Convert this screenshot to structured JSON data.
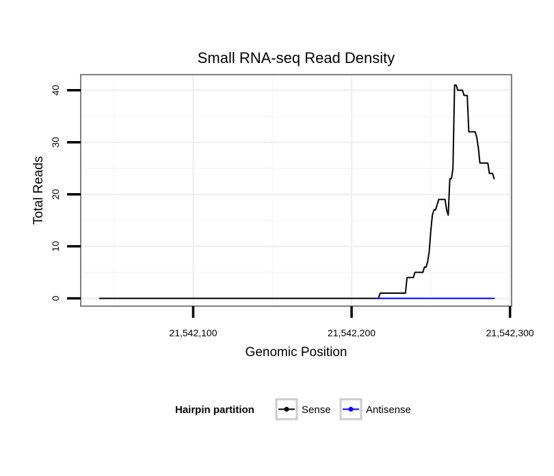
{
  "chart_data": {
    "type": "line",
    "title": "Small RNA-seq Read Density",
    "xlabel": "Genomic Position",
    "ylabel": "Total Reads",
    "xlim": [
      21542029,
      21542301
    ],
    "ylim": [
      -1.5,
      43
    ],
    "x_ticks": [
      {
        "value": 21542100,
        "label": "21,542,100"
      },
      {
        "value": 21542200,
        "label": "21,542,200"
      },
      {
        "value": 21542300,
        "label": "21,542,300"
      }
    ],
    "y_ticks": [
      {
        "value": 0,
        "label": "0"
      },
      {
        "value": 10,
        "label": "10"
      },
      {
        "value": 20,
        "label": "20"
      },
      {
        "value": 30,
        "label": "30"
      },
      {
        "value": 40,
        "label": "40"
      }
    ],
    "x_minor_grid": [
      21542050,
      21542150,
      21542250
    ],
    "y_minor_grid": [
      5,
      15,
      25,
      35
    ],
    "legend": {
      "title": "Hairpin partition",
      "position": "bottom",
      "items": [
        {
          "label": "Sense",
          "color": "#000000"
        },
        {
          "label": "Antisense",
          "color": "#0000ff"
        }
      ]
    },
    "series": [
      {
        "name": "Sense",
        "color": "#000000",
        "x": [
          21542041,
          21542217,
          21542218,
          21542234,
          21542235,
          21542239,
          21542240,
          21542245,
          21542246,
          21542247,
          21542248,
          21542249,
          21542250,
          21542251,
          21542252,
          21542253,
          21542254,
          21542255,
          21542256,
          21542259,
          21542260,
          21542261,
          21542262,
          21542263,
          21542264,
          21542265,
          21542266,
          21542267,
          21542270,
          21542271,
          21542273,
          21542274,
          21542278,
          21542279,
          21542280,
          21542281,
          21542286,
          21542287,
          21542289,
          21542290
        ],
        "y": [
          0,
          0,
          1,
          1,
          4,
          4,
          5,
          5,
          6,
          6,
          7,
          9,
          13,
          16,
          17,
          17,
          18,
          19,
          19,
          19,
          17,
          16,
          23,
          23,
          25,
          41,
          41,
          40,
          40,
          39,
          39,
          32,
          32,
          31,
          29,
          26,
          26,
          24,
          24,
          23
        ]
      },
      {
        "name": "Antisense",
        "color": "#0000ff",
        "x": [
          21542216,
          21542290
        ],
        "y": [
          0,
          0
        ]
      }
    ]
  }
}
